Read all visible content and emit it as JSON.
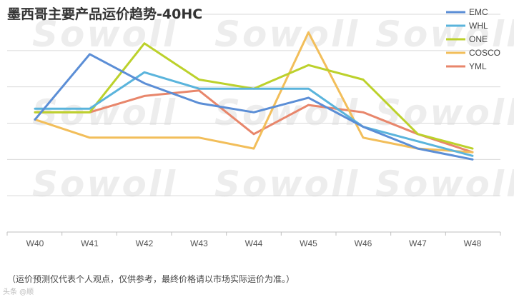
{
  "chart_data": {
    "type": "line",
    "title": "墨西哥主要产品运价趋势-40HC",
    "categories": [
      "W40",
      "W41",
      "W42",
      "W43",
      "W44",
      "W45",
      "W46",
      "W47",
      "W48"
    ],
    "series": [
      {
        "name": "EMC",
        "color": "#5b8ed6",
        "values": [
          3.1,
          4.9,
          4.1,
          3.55,
          3.3,
          3.7,
          2.9,
          2.3,
          2.0
        ]
      },
      {
        "name": "WHL",
        "color": "#5ab4dc",
        "values": [
          3.4,
          3.4,
          4.4,
          3.95,
          3.95,
          3.95,
          2.9,
          2.5,
          2.1
        ]
      },
      {
        "name": "ONE",
        "color": "#bcd12b",
        "values": [
          3.3,
          3.3,
          5.2,
          4.2,
          3.95,
          4.6,
          4.2,
          2.7,
          2.3
        ]
      },
      {
        "name": "COSCO",
        "color": "#f2be5a",
        "values": [
          3.1,
          2.6,
          2.6,
          2.6,
          2.3,
          5.5,
          2.6,
          2.3,
          2.2
        ]
      },
      {
        "name": "YML",
        "color": "#e8866b",
        "values": [
          3.3,
          3.3,
          3.75,
          3.9,
          2.7,
          3.5,
          3.3,
          2.7,
          2.2
        ]
      }
    ],
    "ylim": [
      0,
      6
    ],
    "grid": true,
    "legend": "top-right"
  },
  "watermark": "Sowoll",
  "footnote": "（运价预测仅代表个人观点，仅供参考，最终价格请以市场实际运价为准。）",
  "corner_mark": "头条 @顺"
}
